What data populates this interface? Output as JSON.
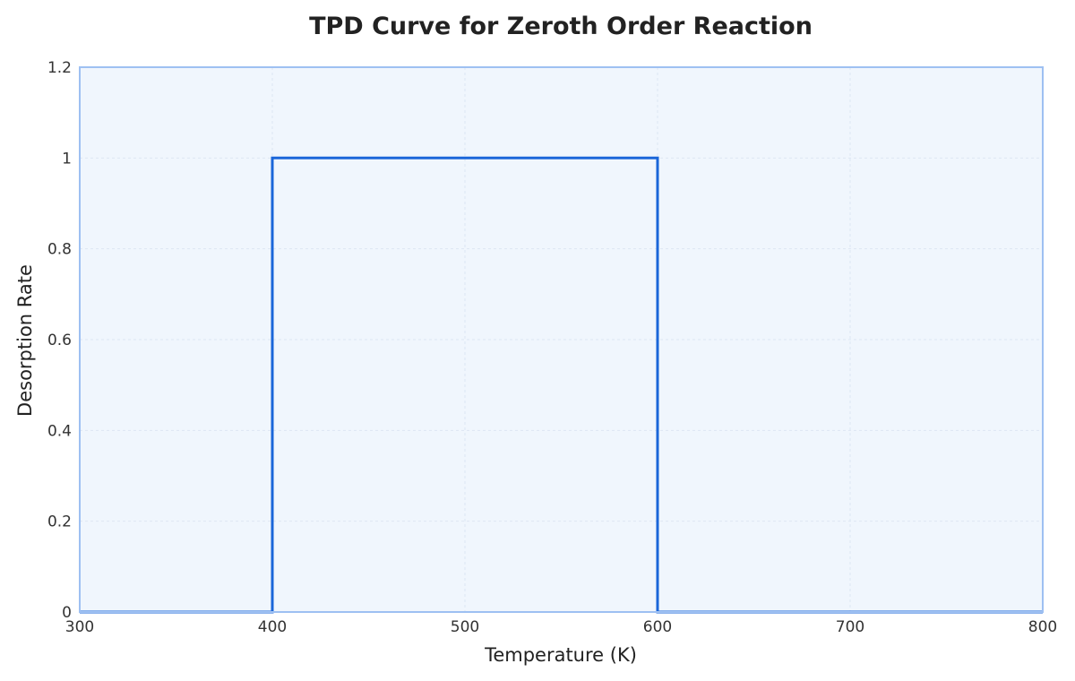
{
  "chart_data": {
    "type": "line",
    "title": "TPD Curve for Zeroth Order Reaction",
    "xlabel": "Temperature (K)",
    "ylabel": "Desorption Rate",
    "xlim": [
      300,
      800
    ],
    "ylim": [
      0,
      1.2
    ],
    "x_ticks": [
      "300",
      "400",
      "500",
      "600",
      "700",
      "800"
    ],
    "y_ticks": [
      "0",
      "0.2",
      "0.4",
      "0.6",
      "0.8",
      "1",
      "1.2"
    ],
    "x_tick_values": [
      300,
      400,
      500,
      600,
      700,
      800
    ],
    "y_tick_values": [
      0,
      0.2,
      0.4,
      0.6,
      0.8,
      1.0,
      1.2
    ],
    "grid": true,
    "series": [
      {
        "x": [
          300,
          400,
          400,
          600,
          600,
          800
        ],
        "y": [
          0,
          0,
          1,
          1,
          0,
          0
        ]
      }
    ],
    "colors": {
      "line": "#1a66d9",
      "plot_background": "#f0f6fd",
      "plot_border": "#9ec0f2",
      "grid": "#dde6f2"
    }
  }
}
